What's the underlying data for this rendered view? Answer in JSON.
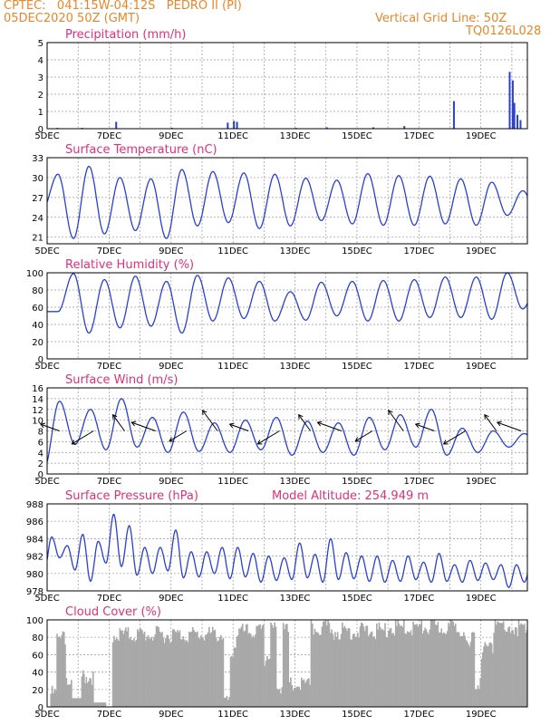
{
  "header": {
    "line1": "CPTEC:   041:15W-04:12S   PEDRO II (PI)",
    "line2": "05DEC2020 50Z (GMT)",
    "right1": "Vertical Grid Line: 50Z",
    "right2": "TQ0126L028"
  },
  "x_labels": [
    "5DEC",
    "7DEC",
    "9DEC",
    "11DEC",
    "13DEC",
    "15DEC",
    "17DEC",
    "19DEC"
  ],
  "colors": {
    "line": "#2a3fd6",
    "title": "#e0307a",
    "header": "#e8872a",
    "cloud": "#a8a8a8",
    "grid": "#999999"
  },
  "chart_data": [
    {
      "type": "bar",
      "title": "Precipitation (mm/h)",
      "ylim": [
        0,
        5
      ],
      "yticks": [
        0,
        1,
        2,
        3,
        4,
        5
      ],
      "x_range": [
        0,
        15.5
      ],
      "values": [
        [
          0.3,
          0.05
        ],
        [
          1.1,
          0.05
        ],
        [
          2.2,
          0.4
        ],
        [
          4.0,
          0.05
        ],
        [
          5.8,
          0.35
        ],
        [
          6.0,
          0.45
        ],
        [
          6.1,
          0.4
        ],
        [
          8.0,
          0.05
        ],
        [
          9.0,
          0.08
        ],
        [
          10.5,
          0.08
        ],
        [
          11.5,
          0.15
        ],
        [
          13.1,
          1.6
        ],
        [
          14.9,
          3.3
        ],
        [
          15.0,
          2.8
        ],
        [
          15.05,
          1.5
        ],
        [
          15.15,
          0.8
        ],
        [
          15.25,
          0.5
        ]
      ]
    },
    {
      "type": "line",
      "title": "Surface Temperature (nC)",
      "ylim": [
        20,
        33
      ],
      "yticks": [
        21,
        24,
        27,
        30,
        33
      ],
      "x_range": [
        0,
        15.5
      ],
      "period": 1,
      "phase": 0.35,
      "maxima": [
        30.5,
        31.7,
        30.0,
        29.8,
        31.2,
        30.9,
        30.7,
        30.5,
        29.9,
        29.6,
        30.6,
        30.3,
        30.2,
        29.8,
        29.3,
        28.0
      ],
      "minima": [
        25.2,
        20.8,
        21.5,
        22.0,
        20.8,
        22.7,
        23.2,
        22.3,
        22.7,
        23.5,
        23.0,
        22.8,
        22.8,
        23.0,
        22.8,
        24.3
      ]
    },
    {
      "type": "line",
      "title": "Relative Humidity (%)",
      "ylim": [
        0,
        100
      ],
      "yticks": [
        0,
        20,
        40,
        60,
        80,
        100
      ],
      "x_range": [
        0,
        15.5
      ],
      "period": 1,
      "phase": 0.85,
      "maxima": [
        99,
        92,
        96,
        90,
        97,
        94,
        90,
        78,
        89,
        90,
        91,
        92,
        95,
        95,
        100,
        90
      ],
      "minima": [
        55,
        30,
        36,
        38,
        30,
        44,
        47,
        44,
        45,
        50,
        44,
        44,
        48,
        48,
        46,
        58
      ]
    },
    {
      "type": "line",
      "title": "Surface Wind (m/s)",
      "ylim": [
        0,
        16
      ],
      "yticks": [
        0,
        2,
        4,
        6,
        8,
        10,
        12,
        14,
        16
      ],
      "x_range": [
        0,
        15.5
      ],
      "period": 1,
      "phase": 0.4,
      "maxima": [
        13.5,
        12.0,
        14.0,
        10.5,
        11.5,
        9.5,
        10.0,
        10.5,
        9.8,
        9.5,
        10.5,
        11.0,
        12.0,
        8.5,
        8.0,
        7.5
      ],
      "minima": [
        1.0,
        5.5,
        4.5,
        5.0,
        4.0,
        4.2,
        4.0,
        4.5,
        3.5,
        4.0,
        3.5,
        4.5,
        5.0,
        3.5,
        4.0,
        5.0
      ],
      "vectors_x": [
        0.4,
        1.5,
        2.5,
        3.5,
        4.5,
        5.5,
        6.5,
        7.5,
        8.5,
        9.5,
        10.5,
        11.5,
        12.5,
        13.5,
        14.5,
        15.3
      ]
    },
    {
      "type": "line",
      "title": "Surface Pressure (hPa)",
      "annotation": "Model Altitude: 254.949 m",
      "ylim": [
        978,
        988
      ],
      "yticks": [
        978,
        980,
        982,
        984,
        986,
        988
      ],
      "x_range": [
        0,
        15.5
      ],
      "period": 0.5,
      "phase": 0.15,
      "maxima": [
        984.2,
        983.2,
        984.5,
        983.7,
        986.8,
        985.5,
        983.0,
        983.0,
        985.0,
        982.5,
        982.5,
        983.0,
        983.0,
        982.3,
        982.0,
        981.8,
        983.5,
        982.2,
        984.0,
        982.4,
        982.0,
        982.0,
        981.5,
        982.0,
        981.3,
        982.3,
        981.0,
        981.5,
        981.2,
        981.0,
        981.0,
        981.5
      ],
      "minima": [
        980.2,
        981.8,
        980.4,
        979.1,
        981.2,
        980.8,
        979.8,
        980.0,
        980.3,
        979.5,
        979.6,
        980.0,
        979.4,
        979.6,
        979.0,
        979.2,
        979.3,
        979.5,
        979.0,
        979.3,
        979.4,
        979.1,
        979.0,
        979.1,
        979.3,
        979.0,
        979.1,
        979.0,
        979.2,
        979.3,
        978.4,
        979.0
      ]
    },
    {
      "type": "bar",
      "title": "Cloud Cover (%)",
      "ylim": [
        0,
        100
      ],
      "yticks": [
        0,
        20,
        40,
        60,
        80,
        100
      ],
      "x_range": [
        0,
        15.5
      ],
      "segments": [
        [
          0.1,
          0.3,
          20
        ],
        [
          0.3,
          0.6,
          82
        ],
        [
          0.6,
          0.8,
          30
        ],
        [
          0.8,
          1.1,
          10
        ],
        [
          1.1,
          1.5,
          40
        ],
        [
          1.5,
          1.9,
          5
        ],
        [
          1.9,
          2.1,
          0
        ],
        [
          2.1,
          5.7,
          88
        ],
        [
          5.7,
          5.9,
          20
        ],
        [
          5.9,
          6.1,
          70
        ],
        [
          6.1,
          7.0,
          91
        ],
        [
          7.0,
          7.2,
          55
        ],
        [
          7.2,
          7.4,
          93
        ],
        [
          7.4,
          7.6,
          20
        ],
        [
          7.6,
          7.8,
          94
        ],
        [
          7.8,
          8.5,
          30
        ],
        [
          8.5,
          9.2,
          95
        ],
        [
          9.2,
          11.0,
          92
        ],
        [
          11.0,
          13.5,
          96
        ],
        [
          13.5,
          13.8,
          82
        ],
        [
          13.8,
          14.0,
          35
        ],
        [
          14.0,
          14.4,
          70
        ],
        [
          14.4,
          14.9,
          98
        ],
        [
          14.9,
          15.2,
          88
        ],
        [
          15.2,
          15.5,
          96
        ]
      ]
    }
  ]
}
